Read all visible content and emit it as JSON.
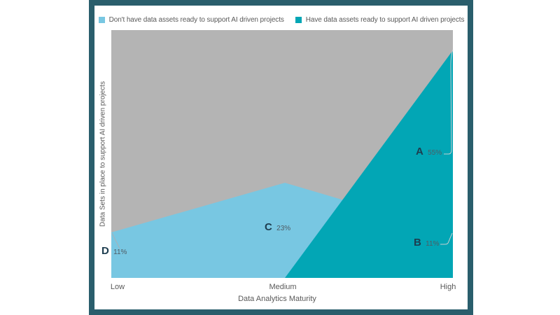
{
  "window": {
    "frame_color": "#2a5e6c",
    "background_color": "#ffffff"
  },
  "legend": [
    {
      "label": "Don't have data assets ready to support AI driven projects",
      "color": "#78c7e2"
    },
    {
      "label": "Have data assets ready to support AI driven projects",
      "color": "#02a6b5"
    }
  ],
  "chart_data": {
    "type": "area",
    "title": "",
    "xlabel": "Data Analytics Maturity",
    "ylabel": "Data Sets in place to support AI driven projects",
    "categories": [
      "Low",
      "Medium",
      "High"
    ],
    "series": [
      {
        "name": "Don't have data assets ready to support AI driven projects",
        "color": "#78c7e2",
        "values": [
          11,
          23,
          11
        ]
      },
      {
        "name": "Have data assets ready to support AI driven projects",
        "color": "#02a6b5",
        "values": [
          0,
          0,
          55
        ]
      }
    ],
    "annotations": [
      {
        "id": "A",
        "value_label": "55%",
        "series": "Have data assets ready to support AI driven projects",
        "category": "High",
        "value": 55
      },
      {
        "id": "B",
        "value_label": "11%",
        "series": "Don't have data assets ready to support AI driven projects",
        "category": "High",
        "value": 11
      },
      {
        "id": "C",
        "value_label": "23%",
        "series": "Don't have data assets ready to support AI driven projects",
        "category": "Medium",
        "value": 23
      },
      {
        "id": "D",
        "value_label": "11%",
        "series": "Don't have data assets ready to support AI driven projects",
        "category": "Low",
        "value": 11
      }
    ],
    "background_area_color": "#b4b4b4",
    "legend_position": "top",
    "grid": false,
    "ylim": [
      0,
      60
    ]
  }
}
